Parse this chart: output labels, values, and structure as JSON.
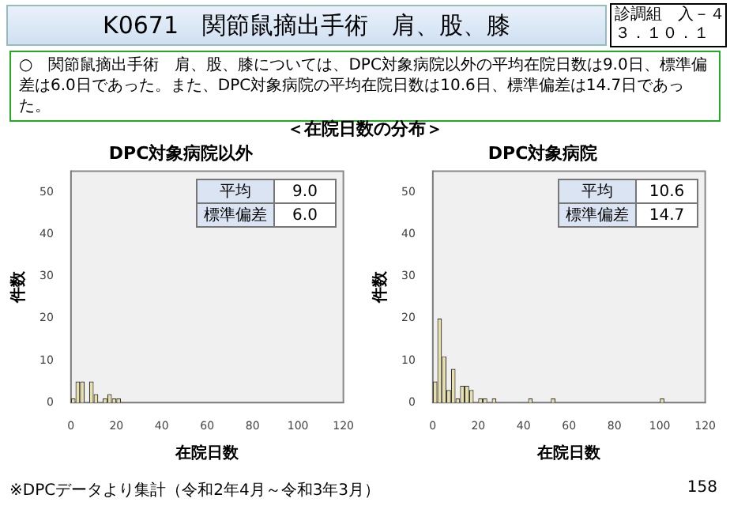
{
  "chart_data": [
    {
      "type": "other",
      "title": "K0671　関節鼠摘出手術　肩、股、膝",
      "annotations": [
        "診調組　入－４",
        "３．１０．１",
        "○　関節鼠摘出手術　肩、股、膝については、DPC対象病院以外の平均在院日数は9.0日、標準偏差は6.0日であった。また、DPC対象病院の平均在院日数は10.6日、標準偏差は14.7日であった。",
        "＜在院日数の分布＞",
        "※DPCデータより集計（令和2年4月～令和3年3月）",
        "158"
      ]
    },
    {
      "type": "histogram",
      "title": "DPC対象病院以外",
      "xlabel": "在院日数",
      "ylabel": "件数",
      "color": "#e8e0a6",
      "bins": [
        0,
        2,
        4,
        6,
        8,
        10,
        12,
        14,
        16,
        18,
        20,
        22
      ],
      "values": [
        1,
        5,
        5,
        0,
        5,
        2,
        0,
        1,
        2,
        1,
        1
      ],
      "xlim": [
        0,
        120
      ],
      "xticks": [
        0,
        20,
        40,
        60,
        80,
        100,
        120
      ],
      "ylim": [
        0,
        55
      ],
      "yticks": [
        0,
        10,
        20,
        30,
        40,
        50
      ],
      "annotations": [
        "平均",
        "9.0",
        "標準偏差",
        "6.0"
      ]
    },
    {
      "type": "histogram",
      "title": "DPC対象病院",
      "xlabel": "在院日数",
      "ylabel": "件数",
      "color": "#e8e0a6",
      "bins": [
        0,
        2,
        4,
        6,
        8,
        10,
        12,
        14,
        16,
        18,
        20,
        22,
        24,
        26,
        28,
        42,
        44,
        52,
        54,
        100,
        102
      ],
      "values": [
        5,
        20,
        11,
        3,
        8,
        1,
        4,
        4,
        3,
        0,
        1,
        1,
        0,
        1,
        0,
        1,
        0,
        1,
        0,
        1
      ],
      "xlim": [
        0,
        120
      ],
      "xticks": [
        0,
        20,
        40,
        60,
        80,
        100,
        120
      ],
      "ylim": [
        0,
        55
      ],
      "yticks": [
        0,
        10,
        20,
        30,
        40,
        50
      ],
      "annotations": [
        "平均",
        "10.6",
        "標準偏差",
        "14.7"
      ]
    }
  ]
}
